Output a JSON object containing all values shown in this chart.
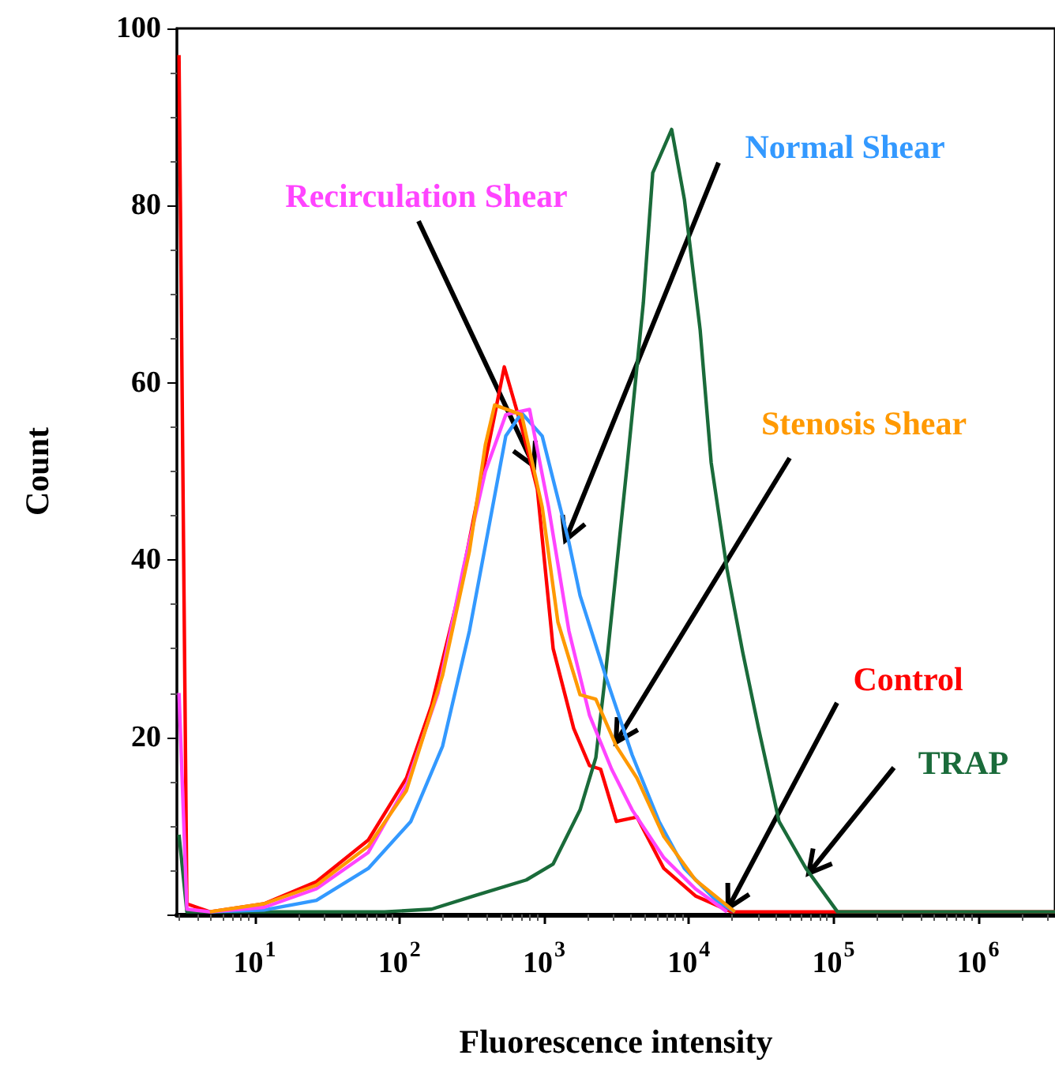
{
  "chart_data": {
    "type": "line",
    "xlabel": "Fluorescence intensity",
    "ylabel": "Count",
    "log": "x",
    "xlim": [
      2.9,
      3400000
    ],
    "xticks": [
      {
        "value": 10,
        "label": "10$^{1}$"
      },
      {
        "value": 100,
        "label": "10$^{2}$"
      },
      {
        "value": 1000,
        "label": "10$^{3}$"
      },
      {
        "value": 10000,
        "label": "10$^{4}$"
      },
      {
        "value": 100000,
        "label": "10$^{5}$"
      },
      {
        "value": 1000000,
        "label": "10$^{6}$"
      }
    ],
    "ylim": [
      0,
      100
    ],
    "yticks": [
      {
        "value": 0,
        "label": null
      },
      20,
      40,
      60,
      80,
      100
    ],
    "grid": false,
    "legend": false,
    "marker": "none",
    "line_style": "solid",
    "series": [
      {
        "name": "Control",
        "color": "#ff0000",
        "x": [
          3.0,
          3.4,
          4.9,
          11.6,
          26.7,
          61,
          112,
          167,
          256,
          329,
          456,
          531,
          700,
          899,
          1156,
          1603,
          2061,
          2460,
          3162,
          4385,
          6730,
          11120,
          19810,
          3400000
        ],
        "values": [
          97,
          1.2,
          0.3,
          1.2,
          3.7,
          8.4,
          15.4,
          23.6,
          36,
          45,
          56.4,
          61.8,
          55,
          48,
          30,
          21,
          16.8,
          16.4,
          10.5,
          11,
          5.2,
          2.1,
          0.3,
          0.3
        ]
      },
      {
        "name": "TRAP",
        "color": "#1a6b3a",
        "x": [
          3.0,
          3.4,
          79,
          167,
          329,
          755,
          1156,
          1774,
          2280,
          2654,
          3767,
          4853,
          5640,
          7621,
          9333,
          11990,
          14290,
          18370,
          23610,
          30400,
          42100,
          64600,
          106700,
          3400000
        ],
        "values": [
          9,
          0.3,
          0.3,
          0.6,
          2.1,
          3.9,
          5.7,
          11.8,
          17.7,
          27,
          51,
          69,
          83.7,
          88.6,
          80.7,
          66,
          51,
          39,
          29.6,
          21,
          10.5,
          5.2,
          0.3,
          0.3
        ]
      },
      {
        "name": "Normal Shear",
        "color": "#3399ff",
        "x": [
          4.9,
          11.6,
          26.7,
          61,
          120,
          199,
          305,
          424,
          544,
          700,
          971,
          1486,
          1774,
          2654,
          4064,
          6237,
          9333,
          15420,
          20830
        ],
        "values": [
          0.3,
          0.5,
          1.6,
          5.2,
          10.5,
          19,
          32,
          44.5,
          54,
          56.6,
          54,
          42,
          36,
          27,
          18,
          10.5,
          5.2,
          1.6,
          0.3
        ]
      },
      {
        "name": "Recirculation Shear",
        "color": "#ff44ff",
        "x": [
          3.0,
          3.4,
          4.9,
          11.6,
          26.7,
          61,
          112,
          185,
          276,
          393,
          544,
          794,
          1074,
          1486,
          2061,
          2931,
          4064,
          6730,
          11120,
          18370
        ],
        "values": [
          25,
          0.6,
          0.3,
          0.8,
          2.9,
          7,
          14.6,
          25,
          39,
          50,
          56.4,
          57,
          46,
          32,
          22.5,
          16.4,
          11.8,
          6.4,
          2.9,
          0.3
        ]
      },
      {
        "name": "Stenosis Shear",
        "color": "#ff9900",
        "x": [
          4.9,
          11.6,
          26.7,
          61,
          112,
          199,
          305,
          393,
          456,
          700,
          971,
          1247,
          1774,
          2280,
          3162,
          4385,
          6730,
          11120,
          20830
        ],
        "values": [
          0.3,
          1.2,
          3.3,
          7.7,
          14,
          27,
          41,
          53,
          57.5,
          56.4,
          46,
          33,
          24.8,
          24.3,
          19,
          15.4,
          8.8,
          3.9,
          0.3
        ]
      }
    ]
  }
}
